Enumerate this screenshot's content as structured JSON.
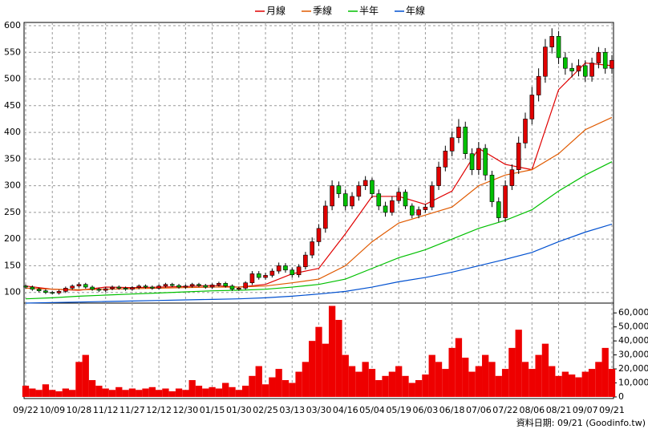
{
  "chart_data": {
    "type": "candlestick",
    "legend_position": "top",
    "grid": true,
    "up_color": "#e00000",
    "down_color": "#00c000",
    "xlim": [
      0,
      88
    ],
    "xticks": [
      {
        "value": 0,
        "label": "09/22"
      },
      {
        "value": 4,
        "label": "10/09"
      },
      {
        "value": 8,
        "label": "10/28"
      },
      {
        "value": 12,
        "label": "11/12"
      },
      {
        "value": 16,
        "label": "11/27"
      },
      {
        "value": 20,
        "label": "12/12"
      },
      {
        "value": 24,
        "label": "12/30"
      },
      {
        "value": 28,
        "label": "01/15"
      },
      {
        "value": 32,
        "label": "01/30"
      },
      {
        "value": 36,
        "label": "02/25"
      },
      {
        "value": 40,
        "label": "03/13"
      },
      {
        "value": 44,
        "label": "03/30"
      },
      {
        "value": 48,
        "label": "04/16"
      },
      {
        "value": 52,
        "label": "05/04"
      },
      {
        "value": 56,
        "label": "05/19"
      },
      {
        "value": 60,
        "label": "06/03"
      },
      {
        "value": 64,
        "label": "06/18"
      },
      {
        "value": 68,
        "label": "07/06"
      },
      {
        "value": 72,
        "label": "07/22"
      },
      {
        "value": 76,
        "label": "08/06"
      },
      {
        "value": 80,
        "label": "08/21"
      },
      {
        "value": 84,
        "label": "09/07"
      },
      {
        "value": 88,
        "label": "09/21"
      }
    ],
    "ylim": [
      80,
      606
    ],
    "yticks": [
      100,
      150,
      200,
      250,
      300,
      350,
      400,
      450,
      500,
      550,
      600
    ],
    "ohlc": {
      "open": [
        112,
        110,
        106,
        103,
        100,
        99,
        102,
        108,
        112,
        115,
        110,
        106,
        104,
        107,
        110,
        108,
        106,
        109,
        112,
        110,
        108,
        112,
        115,
        113,
        110,
        112,
        115,
        113,
        110,
        114,
        117,
        112,
        106,
        108,
        118,
        135,
        128,
        132,
        140,
        150,
        142,
        133,
        148,
        170,
        195,
        220,
        262,
        300,
        285,
        262,
        280,
        300,
        310,
        285,
        262,
        250,
        272,
        288,
        262,
        245,
        255,
        260,
        300,
        335,
        365,
        390,
        410,
        360,
        330,
        370,
        320,
        270,
        240,
        300,
        330,
        380,
        425,
        470,
        505,
        560,
        580,
        540,
        520,
        515,
        525,
        505,
        530,
        550,
        520
      ],
      "high": [
        115,
        113,
        109,
        106,
        103,
        105,
        111,
        115,
        119,
        118,
        113,
        109,
        110,
        113,
        113,
        111,
        112,
        115,
        115,
        113,
        115,
        118,
        118,
        116,
        115,
        118,
        118,
        116,
        117,
        120,
        120,
        115,
        111,
        121,
        140,
        140,
        137,
        145,
        156,
        155,
        147,
        153,
        176,
        203,
        228,
        272,
        310,
        308,
        293,
        288,
        308,
        318,
        315,
        293,
        270,
        280,
        296,
        293,
        267,
        261,
        266,
        308,
        345,
        375,
        402,
        425,
        420,
        370,
        382,
        378,
        328,
        278,
        310,
        340,
        392,
        437,
        485,
        520,
        575,
        595,
        590,
        550,
        530,
        537,
        535,
        540,
        560,
        558,
        545
      ],
      "low": [
        107,
        103,
        100,
        97,
        96,
        96,
        99,
        105,
        109,
        107,
        103,
        101,
        101,
        104,
        105,
        103,
        103,
        106,
        107,
        105,
        105,
        109,
        110,
        107,
        107,
        109,
        110,
        107,
        107,
        111,
        109,
        103,
        103,
        105,
        114,
        124,
        124,
        128,
        135,
        137,
        128,
        128,
        143,
        164,
        187,
        212,
        254,
        277,
        254,
        256,
        272,
        292,
        277,
        254,
        242,
        244,
        266,
        256,
        239,
        239,
        249,
        254,
        292,
        327,
        355,
        380,
        350,
        320,
        320,
        310,
        260,
        232,
        232,
        292,
        322,
        370,
        415,
        458,
        493,
        548,
        528,
        508,
        503,
        505,
        495,
        495,
        520,
        510,
        510
      ],
      "close": [
        110,
        106,
        103,
        100,
        99,
        102,
        108,
        112,
        115,
        110,
        106,
        104,
        107,
        110,
        108,
        106,
        109,
        112,
        110,
        108,
        112,
        115,
        113,
        110,
        112,
        115,
        113,
        110,
        114,
        117,
        112,
        106,
        108,
        118,
        135,
        128,
        132,
        140,
        150,
        142,
        133,
        148,
        170,
        195,
        220,
        262,
        300,
        285,
        262,
        280,
        300,
        310,
        285,
        262,
        250,
        272,
        288,
        262,
        245,
        255,
        260,
        300,
        335,
        365,
        390,
        410,
        360,
        330,
        370,
        320,
        270,
        240,
        300,
        330,
        380,
        425,
        470,
        505,
        560,
        580,
        540,
        520,
        515,
        525,
        505,
        530,
        550,
        520,
        535
      ]
    },
    "series": [
      {
        "name": "月線",
        "color": "#e00000",
        "x": [
          0,
          4,
          8,
          12,
          16,
          20,
          24,
          28,
          32,
          36,
          40,
          44,
          48,
          52,
          56,
          60,
          64,
          68,
          72,
          76,
          80,
          84,
          88
        ],
        "values": [
          112,
          106,
          104,
          110,
          109,
          110,
          111,
          113,
          110,
          115,
          135,
          145,
          210,
          280,
          280,
          265,
          290,
          370,
          340,
          330,
          480,
          530,
          525
        ]
      },
      {
        "name": "季線",
        "color": "#e05a00",
        "x": [
          0,
          4,
          8,
          12,
          16,
          20,
          24,
          28,
          32,
          36,
          40,
          44,
          48,
          52,
          56,
          60,
          64,
          68,
          72,
          76,
          80,
          84,
          88
        ],
        "values": [
          108,
          106,
          105,
          106,
          107,
          108,
          109,
          110,
          110,
          112,
          118,
          125,
          150,
          195,
          230,
          245,
          260,
          300,
          320,
          330,
          360,
          405,
          428
        ]
      },
      {
        "name": "半年",
        "color": "#00c000",
        "x": [
          0,
          4,
          8,
          12,
          16,
          20,
          24,
          28,
          32,
          36,
          40,
          44,
          48,
          52,
          56,
          60,
          64,
          68,
          72,
          76,
          80,
          84,
          88
        ],
        "values": [
          88,
          90,
          93,
          95,
          97,
          99,
          101,
          103,
          104,
          106,
          110,
          115,
          125,
          145,
          165,
          180,
          200,
          220,
          235,
          255,
          290,
          320,
          345
        ]
      },
      {
        "name": "年線",
        "color": "#0050d0",
        "x": [
          0,
          4,
          8,
          12,
          16,
          20,
          24,
          28,
          32,
          36,
          40,
          44,
          48,
          52,
          56,
          60,
          64,
          68,
          72,
          76,
          80,
          84,
          88
        ],
        "values": [
          80,
          81,
          82,
          83,
          84,
          85,
          86,
          87,
          88,
          90,
          93,
          97,
          102,
          110,
          120,
          128,
          138,
          150,
          162,
          175,
          195,
          213,
          228
        ]
      }
    ],
    "volume": {
      "color": "#ee0000",
      "ylim": [
        0,
        67000
      ],
      "yticks": [
        0,
        {
          "value": 10000,
          "label": "10,000"
        },
        {
          "value": 20000,
          "label": "20,000"
        },
        {
          "value": 30000,
          "label": "30,000"
        },
        {
          "value": 40000,
          "label": "40,000"
        },
        {
          "value": 50000,
          "label": "50,000"
        },
        {
          "value": 60000,
          "label": "60,000"
        }
      ],
      "values": [
        8000,
        6000,
        5000,
        9000,
        5000,
        4000,
        6000,
        5000,
        25000,
        30000,
        12000,
        8000,
        6000,
        5000,
        7000,
        5000,
        6000,
        5000,
        6000,
        7000,
        5000,
        6000,
        4000,
        6000,
        5000,
        12000,
        8000,
        6000,
        7000,
        6000,
        10000,
        7000,
        5000,
        8000,
        15000,
        22000,
        9000,
        14000,
        20000,
        12000,
        10000,
        18000,
        25000,
        40000,
        50000,
        38000,
        65000,
        55000,
        30000,
        22000,
        18000,
        25000,
        20000,
        12000,
        15000,
        18000,
        22000,
        15000,
        10000,
        12000,
        16000,
        30000,
        25000,
        20000,
        35000,
        42000,
        28000,
        18000,
        22000,
        30000,
        25000,
        15000,
        20000,
        35000,
        48000,
        25000,
        20000,
        30000,
        38000,
        22000,
        15000,
        18000,
        16000,
        14000,
        18000,
        20000,
        25000,
        35000,
        20000
      ]
    },
    "footer": "資料日期: 09/21 (Goodinfo.tw)"
  }
}
